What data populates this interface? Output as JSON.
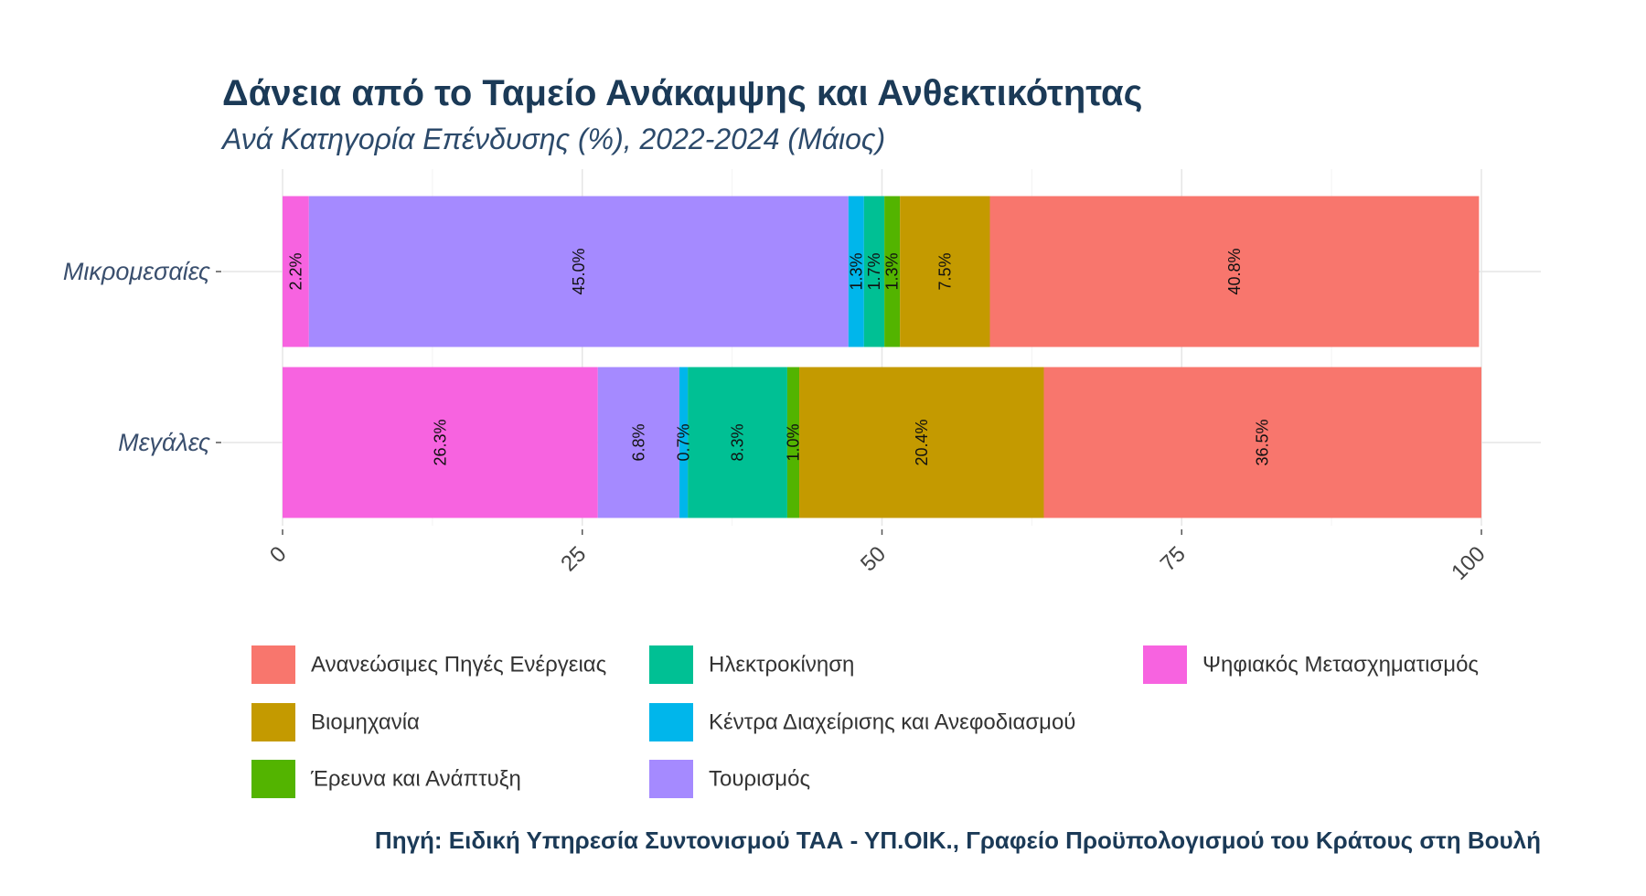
{
  "chart_data": {
    "type": "bar",
    "orientation": "horizontal",
    "stacked": true,
    "title": "Δάνεια από το Ταμείο Ανάκαμψης και Ανθεκτικότητας",
    "subtitle": "Ανά Κατηγορία Επένδυσης (%), 2022-2024 (Μάιος)",
    "xlabel": "",
    "ylabel": "",
    "xlim": [
      0,
      100
    ],
    "x_ticks": [
      "0",
      "25",
      "50",
      "75",
      "100"
    ],
    "categories": [
      "Μικρομεσαίες",
      "Μεγάλες"
    ],
    "series": [
      {
        "name": "Ψηφιακός Μετασχηματισμός",
        "color": "#f763e0",
        "values": [
          2.2,
          26.3
        ],
        "labels": [
          "2.2%",
          "26.3%"
        ]
      },
      {
        "name": "Τουρισμός",
        "color": "#a58aff",
        "values": [
          45.0,
          6.8
        ],
        "labels": [
          "45.0%",
          "6.8%"
        ]
      },
      {
        "name": "Κέντρα Διαχείρισης και Ανεφοδιασμού",
        "color": "#00b6eb",
        "values": [
          1.3,
          0.7
        ],
        "labels": [
          "1.3%",
          "0.7%"
        ]
      },
      {
        "name": "Ηλεκτροκίνηση",
        "color": "#00c094",
        "values": [
          1.7,
          8.3
        ],
        "labels": [
          "1.7%",
          "8.3%"
        ]
      },
      {
        "name": "Έρευνα και Ανάπτυξη",
        "color": "#53b400",
        "values": [
          1.3,
          1.0
        ],
        "labels": [
          "1.3%",
          "1.0%"
        ]
      },
      {
        "name": "Βιομηχανία",
        "color": "#c49a00",
        "values": [
          7.5,
          20.4
        ],
        "labels": [
          "7.5%",
          "20.4%"
        ]
      },
      {
        "name": "Ανανεώσιμες Πηγές Ενέργειας",
        "color": "#f8766d",
        "values": [
          40.8,
          36.5
        ],
        "labels": [
          "40.8%",
          "36.5%"
        ]
      }
    ],
    "legend": {
      "placement": "bottom",
      "order": [
        "Ανανεώσιμες Πηγές Ενέργειας",
        "Βιομηχανία",
        "Έρευνα και Ανάπτυξη",
        "Ηλεκτροκίνηση",
        "Κέντρα Διαχείρισης και Ανεφοδιασμού",
        "Τουρισμός",
        "Ψηφιακός Μετασχηματισμός"
      ]
    },
    "grid": true,
    "source": "Πηγή: Ειδική Υπηρεσία Συντονισμού ΤΑΑ - ΥΠ.ΟΙΚ., Γραφείο Προϋπολογισμού του Κράτους στη Βουλή"
  }
}
